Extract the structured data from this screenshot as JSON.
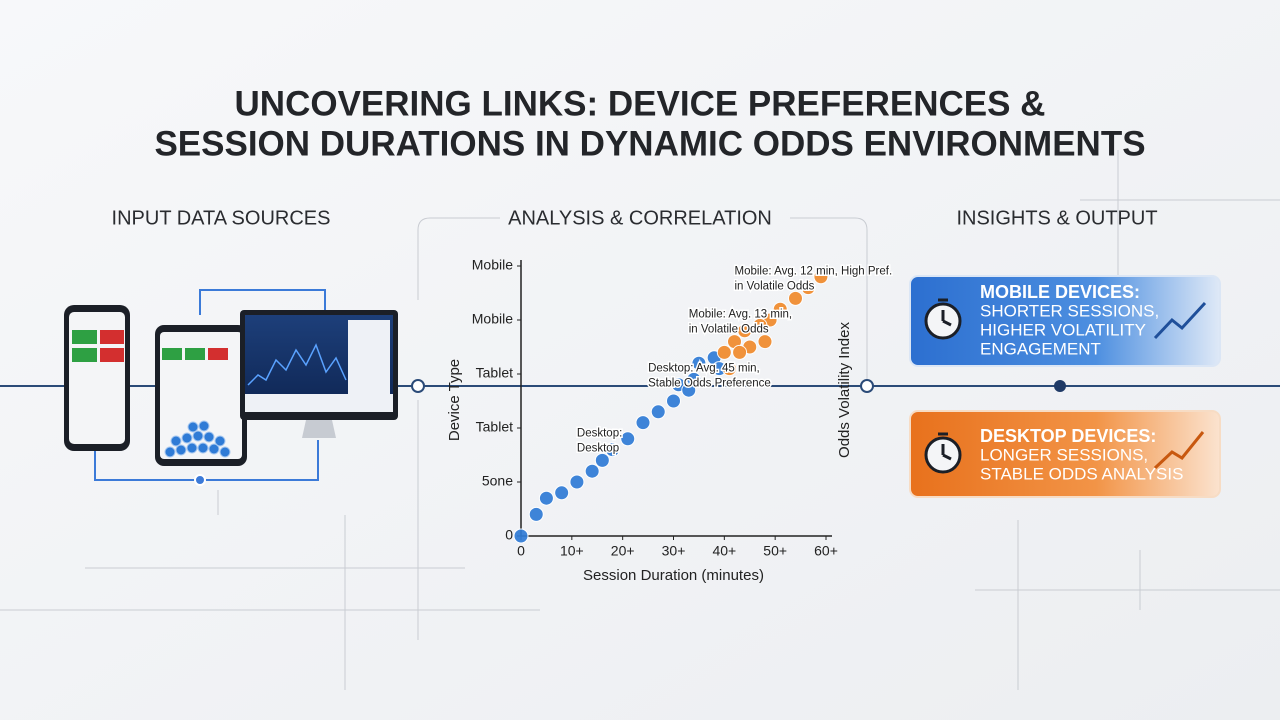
{
  "title": [
    "UNCOVERING LINKS: DEVICE PREFERENCES &",
    "SESSION DURATIONS IN DYNAMIC ODDS ENVIRONMENTS"
  ],
  "sections": [
    "INPUT DATA SOURCES",
    "ANALYSIS & CORRELATION",
    "INSIGHTS & OUTPUT"
  ],
  "chart_data": {
    "type": "scatter",
    "xlabel": "Session Duration (minutes)",
    "ylabel": "Device Type",
    "y2label": "Odds Volatility Index",
    "xlim": [
      0,
      60
    ],
    "xticks": [
      0,
      {
        "value": 10,
        "label": "10+"
      },
      {
        "value": 20,
        "label": "20+"
      },
      {
        "value": 30,
        "label": "30+"
      },
      {
        "value": 40,
        "label": "40+"
      },
      {
        "value": 50,
        "label": "50+"
      },
      {
        "value": 60,
        "label": "60+"
      }
    ],
    "ylim": [
      0,
      5
    ],
    "yticks": [
      0,
      {
        "value": 1,
        "label": "5one"
      },
      {
        "value": 2,
        "label": "Tablet"
      },
      {
        "value": 3,
        "label": "Tablet"
      },
      {
        "value": 4,
        "label": "Mobile"
      },
      {
        "value": 5,
        "label": "Mobile"
      }
    ],
    "series": [
      {
        "color": "#2f7bd6",
        "x": [
          0,
          3,
          5,
          8,
          11,
          14,
          16,
          18,
          21,
          24,
          27,
          30,
          31,
          34,
          35,
          38,
          39,
          33
        ],
        "y": [
          0,
          0.4,
          0.7,
          0.8,
          1.0,
          1.2,
          1.4,
          1.6,
          1.8,
          2.1,
          2.3,
          2.5,
          2.8,
          2.9,
          3.2,
          3.3,
          3.1,
          2.7
        ]
      },
      {
        "color": "#f08a2c",
        "x": [
          59,
          56.5,
          54,
          51,
          49,
          47,
          44,
          45,
          42,
          43,
          40,
          48,
          41
        ],
        "y": [
          4.8,
          4.6,
          4.4,
          4.2,
          4.0,
          3.9,
          3.8,
          3.5,
          3.6,
          3.4,
          3.4,
          3.6,
          3.1
        ]
      }
    ],
    "annotations": [
      {
        "lines": [
          "Mobile: Avg. 12 min, High Pref.",
          "in Volatile Odds"
        ],
        "x": 42,
        "y": 4.9
      },
      {
        "lines": [
          "Mobile: Avg. 13 min,",
          "in Volatile Odds"
        ],
        "x": 33,
        "y": 4.1
      },
      {
        "lines": [
          "Desktop: Avg. 45 min,",
          "Stable Odds Preference"
        ],
        "x": 25,
        "y": 3.1
      },
      {
        "lines": [
          "Desktop:",
          "Desktop"
        ],
        "x": 11,
        "y": 1.9
      }
    ]
  },
  "insights": [
    {
      "title": "MOBILE DEVICES:",
      "lines": [
        "SHORTER SESSIONS,",
        "HIGHER VOLATILITY",
        "ENGAGEMENT"
      ]
    },
    {
      "title": "DESKTOP DEVICES:",
      "lines": [
        "LONGER SESSIONS,",
        "STABLE ODDS ANALYSIS"
      ]
    }
  ]
}
